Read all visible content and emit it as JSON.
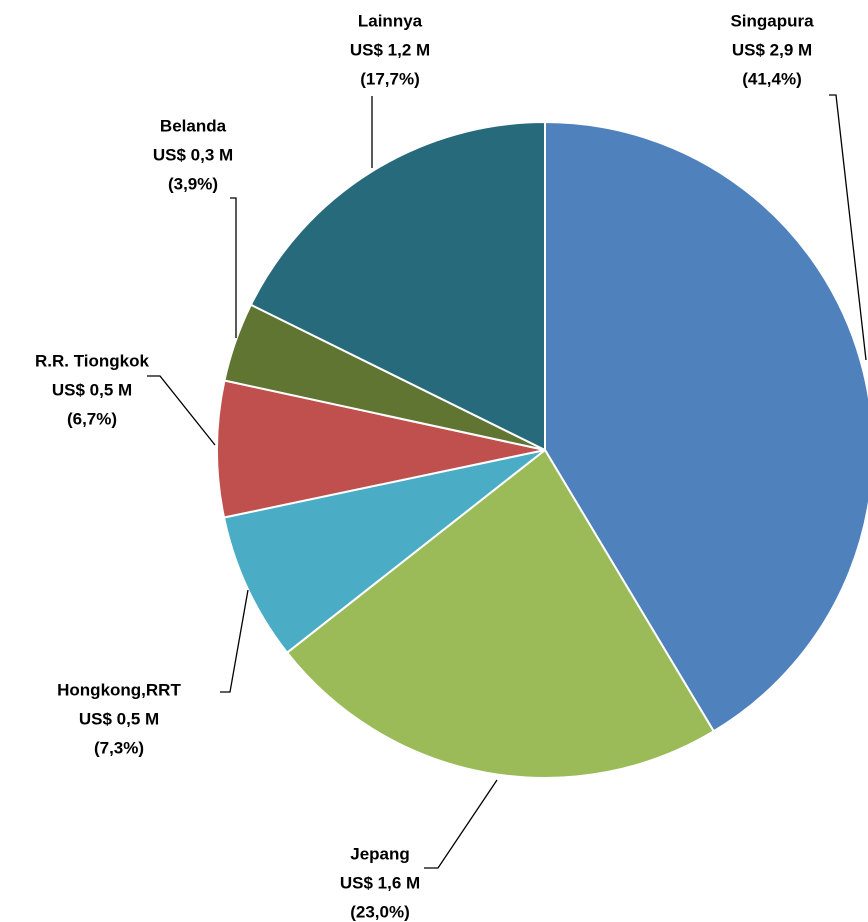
{
  "chart_data": {
    "type": "pie",
    "categories": [
      "Singapura",
      "Jepang",
      "Hongkong,RRT",
      "R.R. Tiongkok",
      "Belanda",
      "Lainnya"
    ],
    "values": [
      41.4,
      23.0,
      7.3,
      6.7,
      3.9,
      17.7
    ],
    "value_labels": [
      "(41,4%)",
      "(23,0%)",
      "(7,3%)",
      "(6,7%)",
      "(3,9%)",
      "(17,7%)"
    ],
    "amount_labels": [
      "US$ 2,9 M",
      "US$ 1,6 M",
      "US$ 0,5 M",
      "US$ 0,5 M",
      "US$ 0,3 M",
      "US$ 1,2 M"
    ],
    "colors": [
      "#4f81bd",
      "#9bbb59",
      "#4bacc6",
      "#c0504d",
      "#5f7531",
      "#276a7b"
    ]
  }
}
